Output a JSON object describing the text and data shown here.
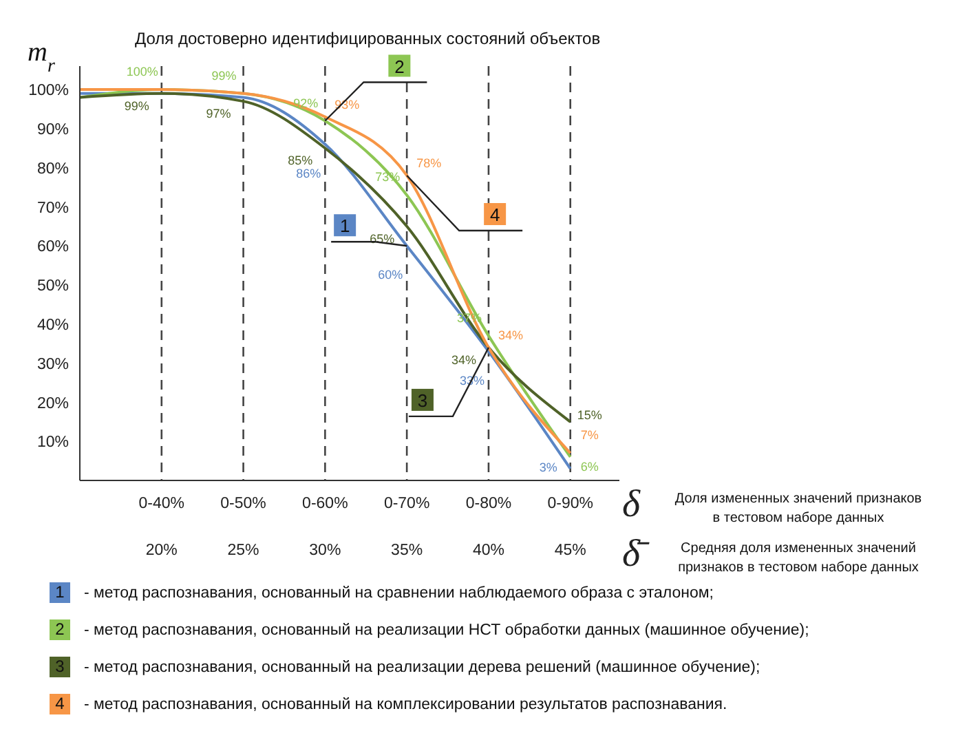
{
  "chart_data": {
    "type": "line",
    "title": "Доля достоверно идентифицированных состояний объектов",
    "ylabel": "m$_{r}$",
    "xlabel": "δ Доля измененных значений признаков в тестовом наборе данных",
    "x2label": "δ̄ Средняя доля измененных значений признаков в тестовом наборе данных",
    "categories": [
      null,
      "0-40%",
      "0-50%",
      "0-60%",
      "0-70%",
      "0-80%",
      "0-90%"
    ],
    "x2lim": [
      15,
      48
    ],
    "x2ticks": [
      {
        "value": 20,
        "label": "20%"
      },
      {
        "value": 25,
        "label": "25%"
      },
      {
        "value": 30,
        "label": "30%"
      },
      {
        "value": 35,
        "label": "35%"
      },
      {
        "value": 40,
        "label": "40%"
      },
      {
        "value": 45,
        "label": "45%"
      }
    ],
    "ylim": [
      0,
      106
    ],
    "yticks": [
      {
        "value": 10,
        "label": "10%"
      },
      {
        "value": 20,
        "label": "20%"
      },
      {
        "value": 30,
        "label": "30%"
      },
      {
        "value": 40,
        "label": "40%"
      },
      {
        "value": 50,
        "label": "50%"
      },
      {
        "value": 60,
        "label": "60%"
      },
      {
        "value": 70,
        "label": "70%"
      },
      {
        "value": 80,
        "label": "80%"
      },
      {
        "value": 90,
        "label": "90%"
      },
      {
        "value": 100,
        "label": "100%"
      }
    ],
    "series": [
      {
        "name": "- метод распознавания, основанный на сравнении наблюдаемого образа с эталоном;",
        "color": "#5b86c5",
        "values": [
          99,
          99,
          98,
          86,
          60,
          33,
          3
        ],
        "value_labels": [
          null,
          null,
          null,
          "86%",
          "60%",
          "33%",
          "3%"
        ]
      },
      {
        "name": "- метод распознавания, основанный на реализации НСТ обработки данных (машинное обучение);",
        "color": "#8dc653",
        "values": [
          98,
          100,
          99,
          92,
          73,
          37,
          6
        ],
        "value_labels": [
          null,
          "100%",
          "99%",
          "92%",
          "73%",
          "37%",
          "6%"
        ]
      },
      {
        "name": "- метод распознавания, основанный на реализации дерева решений (машинное обучение);",
        "color": "#4f6228",
        "values": [
          98,
          99,
          97,
          85,
          65,
          34,
          15
        ],
        "value_labels": [
          null,
          "99%",
          "97%",
          "85%",
          "65%",
          "34%",
          "15%"
        ]
      },
      {
        "name": "- метод распознавания, основанный на комплексировании результатов распознавания.",
        "color": "#f79646",
        "values": [
          100,
          100,
          99,
          93,
          78,
          34,
          7
        ],
        "value_labels": [
          null,
          null,
          null,
          "93%",
          "78%",
          "34%",
          "7%"
        ]
      }
    ],
    "annotations": [
      {
        "text": "1",
        "x": "0-70%",
        "y": 60
      },
      {
        "text": "2",
        "x": "0-60%",
        "y": 92
      },
      {
        "text": "3",
        "x": "0-80%",
        "y": 34
      },
      {
        "text": "4",
        "x": "0-70%",
        "y": 78
      }
    ],
    "grid": "x",
    "line_style": "solid",
    "marker": "none",
    "legend": "bottom"
  }
}
